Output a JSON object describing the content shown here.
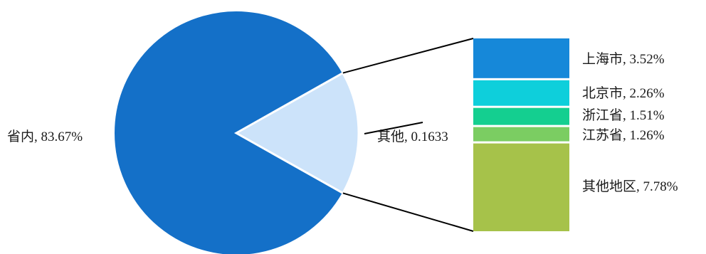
{
  "chart_data": {
    "type": "bar-of-pie",
    "pie": {
      "slices": [
        {
          "name": "省内",
          "value": 83.67,
          "label": "省内, 83.67%",
          "color": "#1470c8"
        },
        {
          "name": "其他",
          "value": 16.33,
          "label": "其他, 0.1633",
          "color": "#cce3fa"
        }
      ]
    },
    "bar": {
      "segments": [
        {
          "name": "上海市",
          "value": 3.52,
          "label": "上海市, 3.52%",
          "color": "#1688d9"
        },
        {
          "name": "北京市",
          "value": 2.26,
          "label": "北京市, 2.26%",
          "color": "#0ecfdb"
        },
        {
          "name": "浙江省",
          "value": 1.51,
          "label": "浙江省, 1.51%",
          "color": "#14cf90"
        },
        {
          "name": "江苏省",
          "value": 1.26,
          "label": "江苏省, 1.26%",
          "color": "#7bcd62"
        },
        {
          "name": "其他地区",
          "value": 7.78,
          "label": "其他地区, 7.78%",
          "color": "#a6c24a"
        }
      ]
    }
  }
}
